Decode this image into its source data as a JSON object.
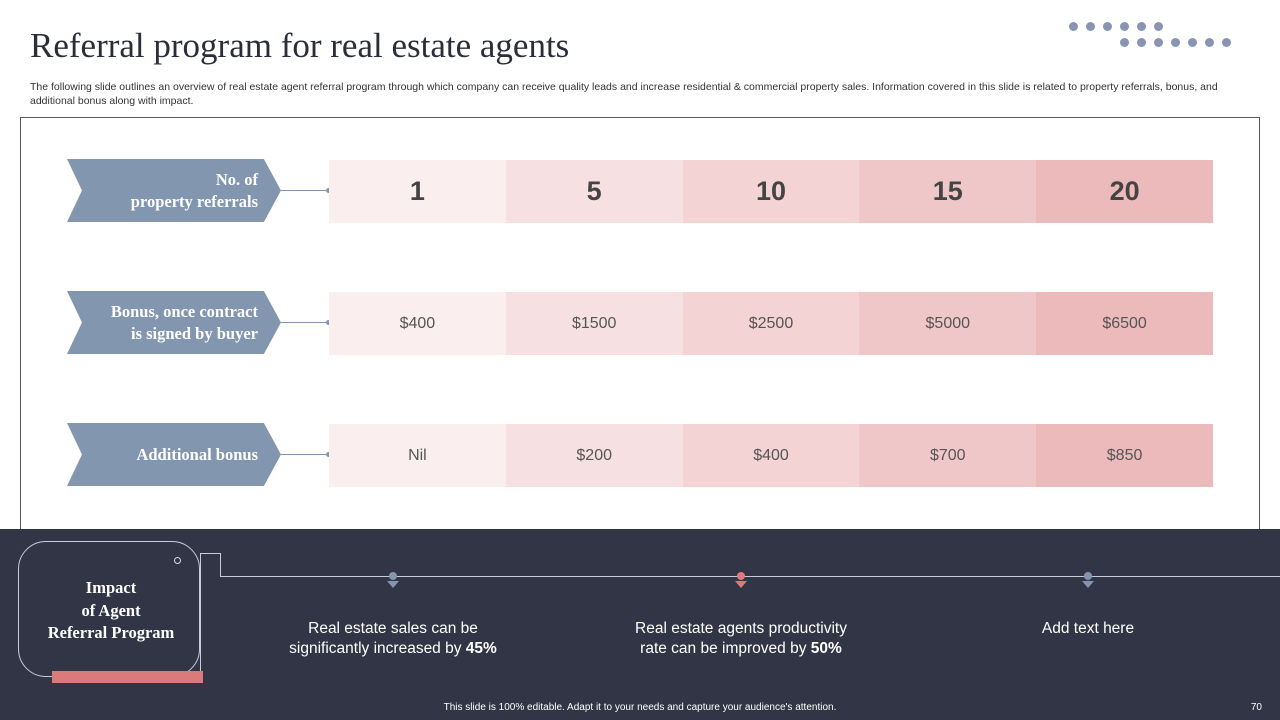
{
  "title": "Referral program for real estate agents",
  "subtitle": "The following slide outlines an overview of real estate agent referral program through which company can receive quality leads and increase residential & commercial property sales. Information covered in this slide is related to property referrals, bonus, and additional bonus along with impact.",
  "rows": [
    {
      "label": "No. of\nproperty referrals",
      "values": [
        "1",
        "5",
        "10",
        "15",
        "20"
      ]
    },
    {
      "label": "Bonus, once contract\nis signed by buyer",
      "values": [
        "$400",
        "$1500",
        "$2500",
        "$5000",
        "$6500"
      ]
    },
    {
      "label": "Additional bonus",
      "values": [
        "Nil",
        "$200",
        "$400",
        "$700",
        "$850"
      ]
    }
  ],
  "impact": {
    "title": "Impact\nof Agent\nReferral Program",
    "items": [
      {
        "text": "Real estate sales can be significantly increased by",
        "highlight": "45%",
        "color": "#8396b0"
      },
      {
        "text": "Real estate agents productivity rate can be improved by",
        "highlight": "50%",
        "color": "#e07a7a"
      },
      {
        "text": "Add text here",
        "highlight": "",
        "color": "#8396b0"
      }
    ]
  },
  "footer_note": "This slide is 100% editable. Adapt it to your needs and capture your audience's attention.",
  "page_number": "70",
  "colors": {
    "accent_blue": "#8396b0",
    "accent_red": "#d97b7b",
    "dark_bg": "#323545"
  }
}
